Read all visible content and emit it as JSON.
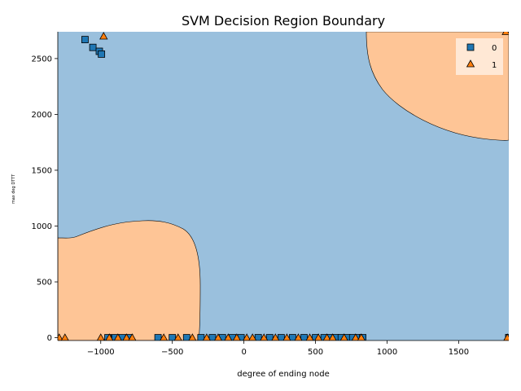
{
  "chart_data": {
    "type": "scatter",
    "title": "SVM Decision Region Boundary",
    "xlabel": "degree of ending node",
    "ylabel": "max deg DTTT",
    "xlim": [
      -1300,
      1850
    ],
    "ylim": [
      -25,
      2740
    ],
    "x_ticks": [
      -1000,
      -500,
      0,
      500,
      1000,
      1500
    ],
    "y_ticks": [
      0,
      500,
      1000,
      1500,
      2000,
      2500
    ],
    "grid": false,
    "legend_position": "top-right",
    "colors": {
      "region_0": "#9ac0dd",
      "region_1": "#fec596",
      "class_0": "#1f77b4",
      "class_1": "#ff7f0e"
    },
    "regions": [
      {
        "class": "0",
        "description": "background"
      },
      {
        "class": "1",
        "location": "lower-left"
      },
      {
        "class": "1",
        "location": "upper-right"
      }
    ],
    "series": [
      {
        "name": "0",
        "marker": "square",
        "points": [
          [
            -1110,
            2670
          ],
          [
            -1055,
            2600
          ],
          [
            -1010,
            2565
          ],
          [
            -995,
            2540
          ],
          [
            -950,
            0
          ],
          [
            -900,
            0
          ],
          [
            -850,
            0
          ],
          [
            -800,
            0
          ],
          [
            -600,
            0
          ],
          [
            -500,
            0
          ],
          [
            -400,
            0
          ],
          [
            -300,
            0
          ],
          [
            -220,
            0
          ],
          [
            -150,
            0
          ],
          [
            -80,
            0
          ],
          [
            -20,
            0
          ],
          [
            100,
            0
          ],
          [
            180,
            0
          ],
          [
            260,
            0
          ],
          [
            340,
            0
          ],
          [
            420,
            0
          ],
          [
            500,
            0
          ],
          [
            560,
            0
          ],
          [
            600,
            0
          ],
          [
            640,
            0
          ],
          [
            680,
            0
          ],
          [
            720,
            0
          ],
          [
            760,
            0
          ],
          [
            800,
            0
          ],
          [
            830,
            0
          ],
          [
            1850,
            0
          ],
          [
            1850,
            0
          ]
        ]
      },
      {
        "name": "1",
        "marker": "triangle",
        "points": [
          [
            -980,
            2700
          ],
          [
            1830,
            2740
          ],
          [
            -1290,
            0
          ],
          [
            -1250,
            0
          ],
          [
            -1000,
            0
          ],
          [
            -940,
            0
          ],
          [
            -880,
            0
          ],
          [
            -820,
            0
          ],
          [
            -780,
            0
          ],
          [
            -560,
            0
          ],
          [
            -460,
            0
          ],
          [
            -360,
            0
          ],
          [
            -260,
            0
          ],
          [
            -180,
            0
          ],
          [
            -110,
            0
          ],
          [
            -50,
            0
          ],
          [
            20,
            0
          ],
          [
            60,
            0
          ],
          [
            140,
            0
          ],
          [
            220,
            0
          ],
          [
            300,
            0
          ],
          [
            380,
            0
          ],
          [
            460,
            0
          ],
          [
            520,
            0
          ],
          [
            580,
            0
          ],
          [
            620,
            0
          ],
          [
            700,
            0
          ],
          [
            780,
            0
          ],
          [
            820,
            0
          ],
          [
            1840,
            0
          ]
        ]
      }
    ]
  }
}
